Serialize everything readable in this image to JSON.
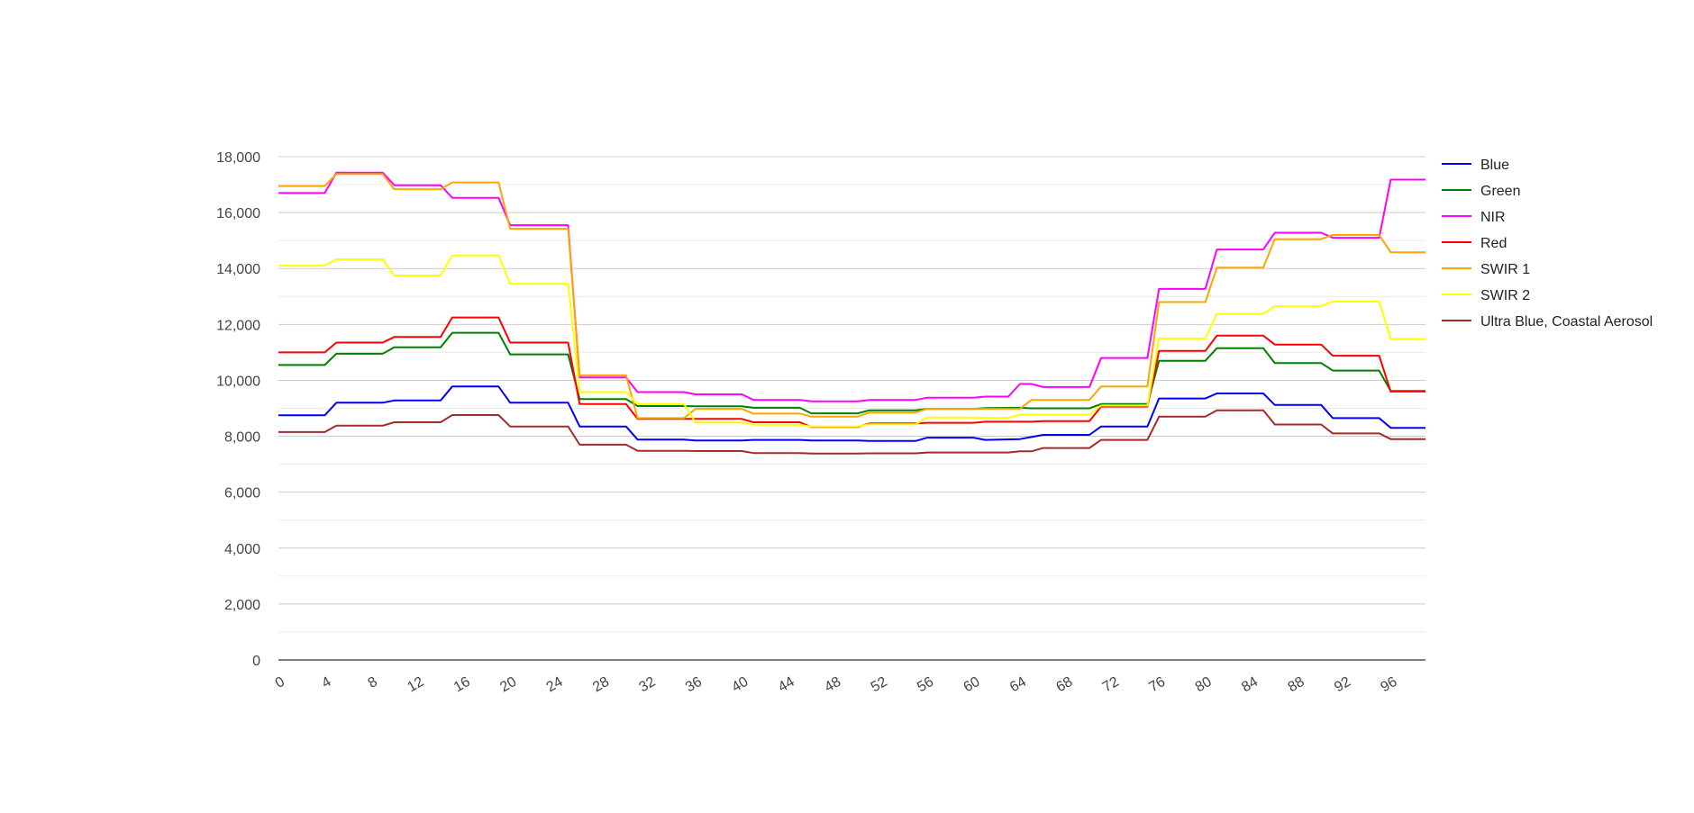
{
  "chart_data": {
    "type": "line",
    "title": "",
    "xlabel": "",
    "ylabel": "",
    "xlim": [
      0,
      99
    ],
    "ylim": [
      0,
      18000
    ],
    "x_ticks": [
      0,
      4,
      8,
      12,
      16,
      20,
      24,
      28,
      32,
      36,
      40,
      44,
      48,
      52,
      56,
      60,
      64,
      68,
      72,
      76,
      80,
      84,
      88,
      92,
      96
    ],
    "x_tick_labels": [
      "0",
      "4",
      "8",
      "12",
      "16",
      "20",
      "24",
      "28",
      "32",
      "36",
      "40",
      "44",
      "48",
      "52",
      "56",
      "60",
      "64",
      "68",
      "72",
      "76",
      "80",
      "84",
      "88",
      "92",
      "96"
    ],
    "y_ticks": [
      0,
      2000,
      4000,
      6000,
      8000,
      10000,
      12000,
      14000,
      16000,
      18000
    ],
    "y_tick_labels": [
      "0",
      "2,000",
      "4,000",
      "6,000",
      "8,000",
      "10,000",
      "12,000",
      "14,000",
      "16,000",
      "18,000"
    ],
    "grid": true,
    "legend_position": "right",
    "series": [
      {
        "name": "Blue",
        "color": "#0000ff",
        "points": [
          [
            0,
            8750
          ],
          [
            4,
            8750
          ],
          [
            5,
            9200
          ],
          [
            9,
            9200
          ],
          [
            10,
            9280
          ],
          [
            14,
            9280
          ],
          [
            15,
            9780
          ],
          [
            19,
            9780
          ],
          [
            20,
            9200
          ],
          [
            25,
            9200
          ],
          [
            26,
            8350
          ],
          [
            30,
            8350
          ],
          [
            31,
            7880
          ],
          [
            35,
            7880
          ],
          [
            36,
            7850
          ],
          [
            40,
            7850
          ],
          [
            41,
            7870
          ],
          [
            45,
            7870
          ],
          [
            46,
            7850
          ],
          [
            50,
            7850
          ],
          [
            51,
            7830
          ],
          [
            55,
            7830
          ],
          [
            56,
            7950
          ],
          [
            60,
            7950
          ],
          [
            61,
            7870
          ],
          [
            64,
            7900
          ],
          [
            66,
            8050
          ],
          [
            70,
            8050
          ],
          [
            71,
            8350
          ],
          [
            75,
            8350
          ],
          [
            76,
            9350
          ],
          [
            80,
            9350
          ],
          [
            81,
            9530
          ],
          [
            85,
            9530
          ],
          [
            86,
            9120
          ],
          [
            90,
            9120
          ],
          [
            91,
            8650
          ],
          [
            95,
            8650
          ],
          [
            96,
            8300
          ],
          [
            99,
            8300
          ]
        ]
      },
      {
        "name": "Green",
        "color": "#008000",
        "points": [
          [
            0,
            10550
          ],
          [
            4,
            10550
          ],
          [
            5,
            10950
          ],
          [
            9,
            10950
          ],
          [
            10,
            11180
          ],
          [
            14,
            11180
          ],
          [
            15,
            11700
          ],
          [
            19,
            11700
          ],
          [
            20,
            10930
          ],
          [
            25,
            10930
          ],
          [
            26,
            9330
          ],
          [
            30,
            9330
          ],
          [
            31,
            9080
          ],
          [
            35,
            9080
          ],
          [
            36,
            9070
          ],
          [
            40,
            9070
          ],
          [
            41,
            9020
          ],
          [
            45,
            9020
          ],
          [
            46,
            8820
          ],
          [
            50,
            8820
          ],
          [
            51,
            8930
          ],
          [
            55,
            8930
          ],
          [
            56,
            8980
          ],
          [
            60,
            8980
          ],
          [
            61,
            9010
          ],
          [
            64,
            9020
          ],
          [
            65,
            9000
          ],
          [
            70,
            9000
          ],
          [
            71,
            9150
          ],
          [
            75,
            9150
          ],
          [
            76,
            10700
          ],
          [
            80,
            10700
          ],
          [
            81,
            11150
          ],
          [
            85,
            11150
          ],
          [
            86,
            10620
          ],
          [
            90,
            10620
          ],
          [
            91,
            10350
          ],
          [
            95,
            10350
          ],
          [
            96,
            9620
          ],
          [
            99,
            9620
          ]
        ]
      },
      {
        "name": "NIR",
        "color": "#ff00ff",
        "points": [
          [
            0,
            16700
          ],
          [
            4,
            16700
          ],
          [
            5,
            17430
          ],
          [
            9,
            17430
          ],
          [
            10,
            16980
          ],
          [
            14,
            16980
          ],
          [
            15,
            16530
          ],
          [
            19,
            16530
          ],
          [
            20,
            15550
          ],
          [
            25,
            15550
          ],
          [
            26,
            10100
          ],
          [
            30,
            10100
          ],
          [
            31,
            9580
          ],
          [
            35,
            9580
          ],
          [
            36,
            9500
          ],
          [
            40,
            9500
          ],
          [
            41,
            9300
          ],
          [
            45,
            9300
          ],
          [
            46,
            9250
          ],
          [
            50,
            9250
          ],
          [
            51,
            9300
          ],
          [
            55,
            9300
          ],
          [
            56,
            9380
          ],
          [
            60,
            9380
          ],
          [
            61,
            9420
          ],
          [
            63,
            9420
          ],
          [
            64,
            9870
          ],
          [
            65,
            9870
          ],
          [
            66,
            9760
          ],
          [
            70,
            9760
          ],
          [
            71,
            10800
          ],
          [
            75,
            10800
          ],
          [
            76,
            13270
          ],
          [
            80,
            13270
          ],
          [
            81,
            14680
          ],
          [
            85,
            14680
          ],
          [
            86,
            15280
          ],
          [
            90,
            15280
          ],
          [
            91,
            15100
          ],
          [
            95,
            15100
          ],
          [
            96,
            17180
          ],
          [
            99,
            17180
          ]
        ]
      },
      {
        "name": "Red",
        "color": "#ff0000",
        "points": [
          [
            0,
            11000
          ],
          [
            4,
            11000
          ],
          [
            5,
            11350
          ],
          [
            9,
            11350
          ],
          [
            10,
            11550
          ],
          [
            14,
            11550
          ],
          [
            15,
            12250
          ],
          [
            19,
            12250
          ],
          [
            20,
            11350
          ],
          [
            25,
            11350
          ],
          [
            26,
            9150
          ],
          [
            30,
            9150
          ],
          [
            31,
            8620
          ],
          [
            35,
            8620
          ],
          [
            36,
            8620
          ],
          [
            40,
            8620
          ],
          [
            41,
            8500
          ],
          [
            45,
            8500
          ],
          [
            46,
            8330
          ],
          [
            50,
            8330
          ],
          [
            51,
            8460
          ],
          [
            55,
            8460
          ],
          [
            56,
            8480
          ],
          [
            60,
            8480
          ],
          [
            61,
            8520
          ],
          [
            65,
            8520
          ],
          [
            66,
            8540
          ],
          [
            70,
            8540
          ],
          [
            71,
            9060
          ],
          [
            75,
            9060
          ],
          [
            76,
            11050
          ],
          [
            80,
            11050
          ],
          [
            81,
            11600
          ],
          [
            85,
            11600
          ],
          [
            86,
            11280
          ],
          [
            90,
            11280
          ],
          [
            91,
            10880
          ],
          [
            95,
            10880
          ],
          [
            96,
            9600
          ],
          [
            99,
            9600
          ]
        ]
      },
      {
        "name": "SWIR 1",
        "color": "#ffa500",
        "points": [
          [
            0,
            16950
          ],
          [
            4,
            16950
          ],
          [
            5,
            17380
          ],
          [
            9,
            17380
          ],
          [
            10,
            16830
          ],
          [
            14,
            16830
          ],
          [
            15,
            17080
          ],
          [
            19,
            17080
          ],
          [
            20,
            15420
          ],
          [
            25,
            15420
          ],
          [
            26,
            10180
          ],
          [
            30,
            10180
          ],
          [
            31,
            8650
          ],
          [
            35,
            8650
          ],
          [
            36,
            8980
          ],
          [
            40,
            8980
          ],
          [
            41,
            8810
          ],
          [
            45,
            8810
          ],
          [
            46,
            8700
          ],
          [
            50,
            8700
          ],
          [
            51,
            8850
          ],
          [
            55,
            8850
          ],
          [
            56,
            8980
          ],
          [
            60,
            8980
          ],
          [
            61,
            8980
          ],
          [
            64,
            8980
          ],
          [
            65,
            9300
          ],
          [
            70,
            9300
          ],
          [
            71,
            9780
          ],
          [
            75,
            9780
          ],
          [
            76,
            12800
          ],
          [
            80,
            12800
          ],
          [
            81,
            14030
          ],
          [
            85,
            14030
          ],
          [
            86,
            15050
          ],
          [
            90,
            15050
          ],
          [
            91,
            15200
          ],
          [
            95,
            15200
          ],
          [
            96,
            14580
          ],
          [
            99,
            14580
          ]
        ]
      },
      {
        "name": "SWIR 2",
        "color": "#ffff00",
        "points": [
          [
            0,
            14100
          ],
          [
            4,
            14100
          ],
          [
            5,
            14330
          ],
          [
            9,
            14330
          ],
          [
            10,
            13750
          ],
          [
            14,
            13750
          ],
          [
            15,
            14470
          ],
          [
            19,
            14470
          ],
          [
            20,
            13450
          ],
          [
            25,
            13450
          ],
          [
            26,
            9580
          ],
          [
            30,
            9580
          ],
          [
            31,
            9150
          ],
          [
            35,
            9150
          ],
          [
            36,
            8490
          ],
          [
            40,
            8490
          ],
          [
            41,
            8410
          ],
          [
            45,
            8410
          ],
          [
            46,
            8350
          ],
          [
            50,
            8350
          ],
          [
            51,
            8430
          ],
          [
            55,
            8430
          ],
          [
            56,
            8670
          ],
          [
            60,
            8670
          ],
          [
            61,
            8660
          ],
          [
            63,
            8660
          ],
          [
            64,
            8770
          ],
          [
            70,
            8770
          ],
          [
            71,
            9100
          ],
          [
            75,
            9100
          ],
          [
            76,
            11500
          ],
          [
            80,
            11500
          ],
          [
            81,
            12380
          ],
          [
            85,
            12380
          ],
          [
            86,
            12650
          ],
          [
            90,
            12650
          ],
          [
            91,
            12820
          ],
          [
            95,
            12820
          ],
          [
            96,
            11480
          ],
          [
            99,
            11480
          ]
        ]
      },
      {
        "name": "Ultra Blue, Coastal Aerosol",
        "color": "#a52a2a",
        "points": [
          [
            0,
            8150
          ],
          [
            4,
            8150
          ],
          [
            5,
            8380
          ],
          [
            9,
            8380
          ],
          [
            10,
            8500
          ],
          [
            14,
            8500
          ],
          [
            15,
            8760
          ],
          [
            19,
            8760
          ],
          [
            20,
            8350
          ],
          [
            25,
            8350
          ],
          [
            26,
            7700
          ],
          [
            30,
            7700
          ],
          [
            31,
            7480
          ],
          [
            35,
            7480
          ],
          [
            36,
            7470
          ],
          [
            40,
            7470
          ],
          [
            41,
            7400
          ],
          [
            45,
            7400
          ],
          [
            46,
            7380
          ],
          [
            50,
            7380
          ],
          [
            51,
            7390
          ],
          [
            55,
            7390
          ],
          [
            56,
            7420
          ],
          [
            60,
            7420
          ],
          [
            61,
            7420
          ],
          [
            63,
            7420
          ],
          [
            64,
            7460
          ],
          [
            65,
            7460
          ],
          [
            66,
            7580
          ],
          [
            70,
            7580
          ],
          [
            71,
            7870
          ],
          [
            75,
            7870
          ],
          [
            76,
            8700
          ],
          [
            80,
            8700
          ],
          [
            81,
            8930
          ],
          [
            85,
            8930
          ],
          [
            86,
            8420
          ],
          [
            90,
            8420
          ],
          [
            91,
            8100
          ],
          [
            95,
            8100
          ],
          [
            96,
            7900
          ],
          [
            99,
            7900
          ]
        ]
      }
    ]
  }
}
